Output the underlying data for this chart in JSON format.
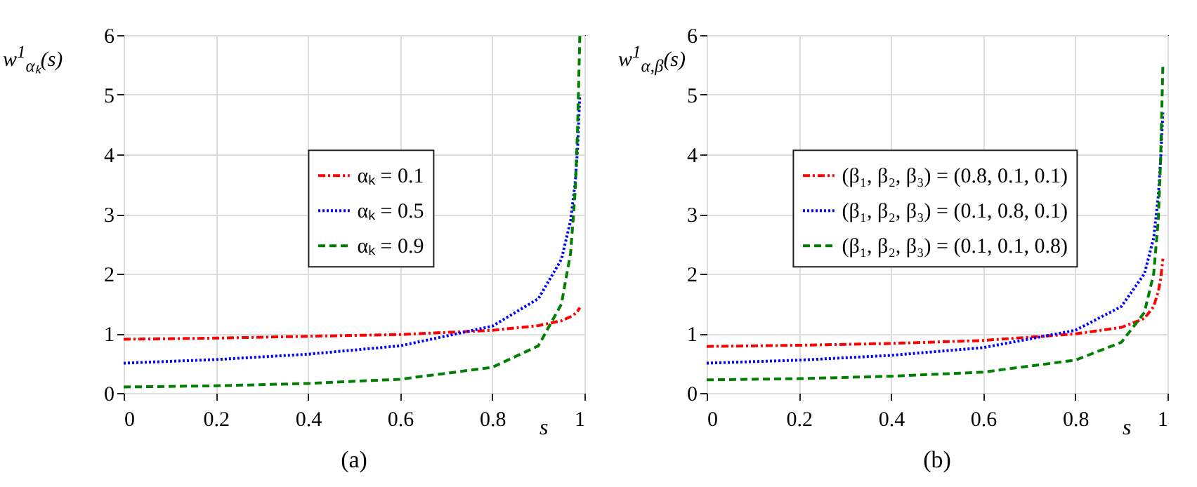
{
  "chart_data": [
    {
      "type": "line",
      "xlabel": "s",
      "ylabel": "w$^{1}$$_{αₖ}$(s)",
      "annotations": [
        "(a)"
      ],
      "xlim": [
        0,
        1
      ],
      "ylim": [
        0,
        6
      ],
      "xticks": [
        0,
        0.2,
        0.4,
        0.6,
        0.8,
        1
      ],
      "yticks": [
        0,
        1,
        2,
        3,
        4,
        5,
        6
      ],
      "grid": true,
      "legend": "center",
      "x": [
        0,
        0.2,
        0.4,
        0.6,
        0.8,
        0.9,
        0.95,
        0.97,
        0.98,
        0.985,
        0.99
      ],
      "series": [
        {
          "name": "αₖ = 0.1",
          "color": "#ff0000",
          "line_style": "dashdot",
          "values": [
            0.9,
            0.92,
            0.95,
            0.98,
            1.05,
            1.13,
            1.21,
            1.28,
            1.33,
            1.37,
            1.43
          ]
        },
        {
          "name": "αₖ = 0.5",
          "color": "#0000ff",
          "line_style": "dotted",
          "values": [
            0.5,
            0.56,
            0.65,
            0.79,
            1.12,
            1.58,
            2.24,
            2.89,
            3.54,
            4.08,
            5.0
          ]
        },
        {
          "name": "αₖ = 0.9",
          "color": "#008000",
          "line_style": "dashed",
          "values": [
            0.1,
            0.12,
            0.16,
            0.23,
            0.43,
            0.79,
            1.49,
            2.35,
            3.39,
            4.4,
            6
          ]
        }
      ]
    },
    {
      "type": "line",
      "xlabel": "s",
      "ylabel": "w$^{1}$$_{α,β}$(s)",
      "annotations": [
        "(b)"
      ],
      "xlim": [
        0,
        1
      ],
      "ylim": [
        0,
        6
      ],
      "xticks": [
        0,
        0.2,
        0.4,
        0.6,
        0.8,
        1
      ],
      "yticks": [
        0,
        1,
        2,
        3,
        4,
        5,
        6
      ],
      "grid": true,
      "legend": "center",
      "x": [
        0,
        0.2,
        0.4,
        0.6,
        0.8,
        0.9,
        0.95,
        0.97,
        0.98,
        0.985,
        0.99
      ],
      "series": [
        {
          "name": "(β₁, β₂, β₃) = (0.8, 0.1, 0.1)",
          "color": "#ff0000",
          "line_style": "dashdot",
          "values": [
            0.78,
            0.8,
            0.83,
            0.88,
            0.99,
            1.1,
            1.25,
            1.45,
            1.7,
            1.9,
            2.25
          ]
        },
        {
          "name": "(β₁, β₂, β₃) = (0.1, 0.8, 0.1)",
          "color": "#0000ff",
          "line_style": "dotted",
          "values": [
            0.5,
            0.55,
            0.63,
            0.76,
            1.05,
            1.45,
            2.0,
            2.6,
            3.3,
            3.9,
            4.7
          ]
        },
        {
          "name": "(β₁, β₂, β₃) = (0.1, 0.1, 0.8)",
          "color": "#008000",
          "line_style": "dashed",
          "values": [
            0.22,
            0.24,
            0.28,
            0.35,
            0.55,
            0.85,
            1.35,
            2.0,
            2.9,
            3.9,
            5.5
          ]
        }
      ]
    }
  ]
}
